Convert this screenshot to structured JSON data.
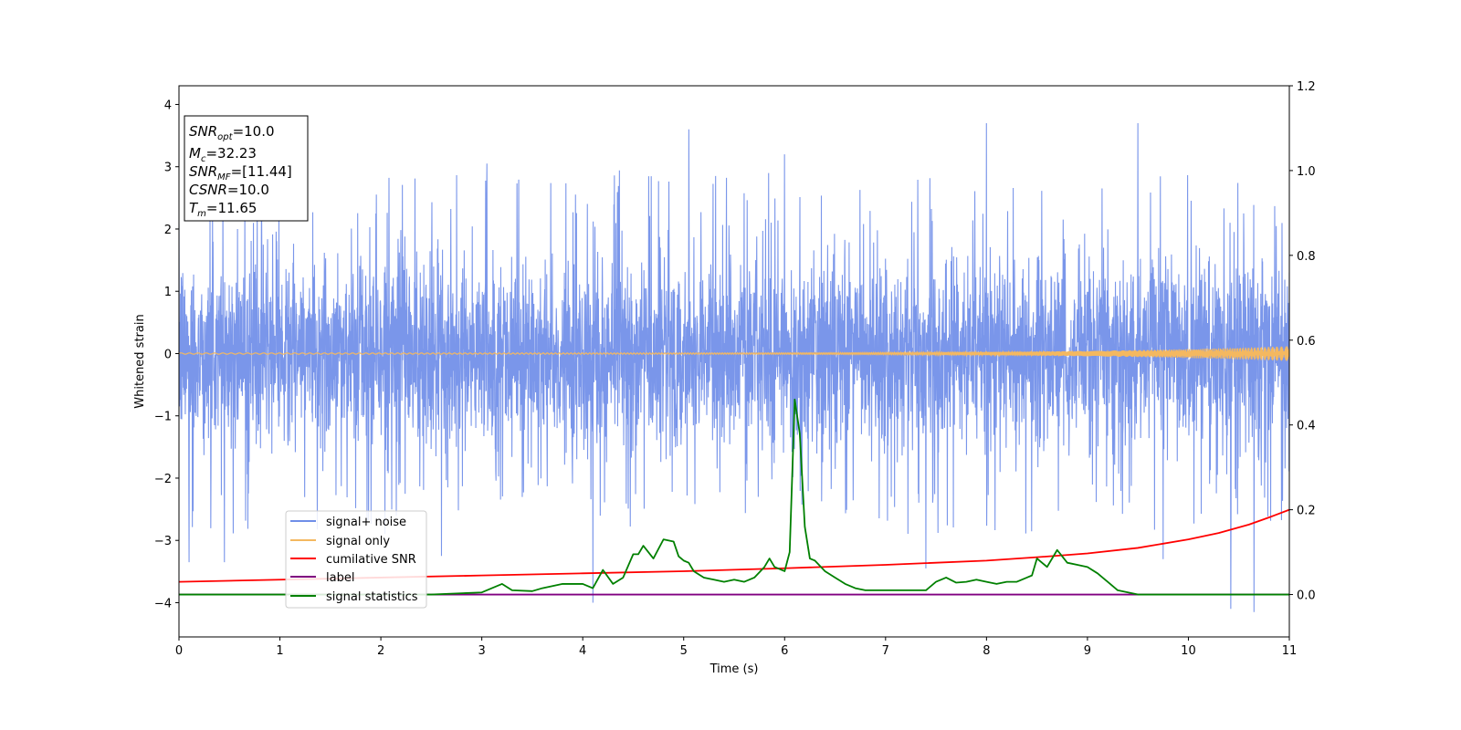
{
  "chart_data": {
    "type": "line",
    "xlabel": "Time (s)",
    "ylabel": "Whitened strain",
    "xlim": [
      0,
      11
    ],
    "ylim_left": [
      -4.55,
      4.3
    ],
    "ylim_right": [
      -0.1,
      1.2
    ],
    "x_ticks": [
      "0",
      "1",
      "2",
      "3",
      "4",
      "5",
      "6",
      "7",
      "8",
      "9",
      "10",
      "11"
    ],
    "y_ticks_left": [
      "4",
      "3",
      "2",
      "1",
      "0",
      "−1",
      "−2",
      "−3",
      "−4"
    ],
    "y_ticks_right": [
      "1.2",
      "1.0",
      "0.8",
      "0.6",
      "0.4",
      "0.2",
      "0.0"
    ],
    "grid": false,
    "legend_location": "lower-left",
    "info_box": {
      "snr_opt": {
        "sym": "SNR",
        "sub": "opt",
        "val": "=10.0"
      },
      "mc": {
        "sym": "M",
        "sub": "c",
        "val": "=32.23"
      },
      "snr_mf": {
        "sym": "SNR",
        "sub": "MF",
        "val": "=[11.44]"
      },
      "csnr": {
        "sym": "CSNR",
        "sub": "",
        "val": "=10.0"
      },
      "tm": {
        "sym": "T",
        "sub": "m",
        "val": "=11.65"
      }
    },
    "series": [
      {
        "name": "signal+ noise",
        "axis": "left",
        "color": "#4169e1",
        "style": "noise",
        "typical_range": [
          -2.0,
          2.0
        ],
        "spike_range": [
          -4.2,
          3.7
        ],
        "spikes": [
          [
            0.1,
            -3.35
          ],
          [
            0.45,
            -3.35
          ],
          [
            2.6,
            -3.25
          ],
          [
            4.1,
            -4.0
          ],
          [
            5.05,
            3.6
          ],
          [
            8.0,
            3.7
          ],
          [
            9.5,
            3.7
          ],
          [
            10.42,
            -4.1
          ],
          [
            10.65,
            -4.15
          ],
          [
            9.75,
            -3.3
          ],
          [
            7.4,
            -3.45
          ],
          [
            3.05,
            3.05
          ],
          [
            6.0,
            3.2
          ]
        ]
      },
      {
        "name": "signal only",
        "axis": "left",
        "color": "#f4b860",
        "style": "chirp",
        "amplitude_start": 0.01,
        "amplitude_end": 0.12
      },
      {
        "name": "cumilative SNR",
        "axis": "right",
        "color": "#ff0000",
        "x": [
          0,
          1,
          2,
          3,
          4,
          5,
          6,
          7,
          8,
          8.5,
          9,
          9.5,
          10,
          10.3,
          10.6,
          10.8,
          11
        ],
        "y": [
          0.03,
          0.035,
          0.04,
          0.045,
          0.05,
          0.055,
          0.062,
          0.07,
          0.08,
          0.088,
          0.097,
          0.11,
          0.13,
          0.145,
          0.165,
          0.182,
          0.2
        ]
      },
      {
        "name": "label",
        "axis": "right",
        "color": "#800080",
        "x": [
          0,
          11
        ],
        "y": [
          0.0,
          0.0
        ]
      },
      {
        "name": "signal statistics",
        "axis": "right",
        "color": "#008000",
        "x": [
          0,
          0.5,
          1,
          1.5,
          2,
          2.5,
          3,
          3.1,
          3.2,
          3.3,
          3.5,
          3.6,
          3.7,
          3.8,
          3.9,
          4.0,
          4.1,
          4.2,
          4.3,
          4.4,
          4.5,
          4.55,
          4.6,
          4.7,
          4.8,
          4.9,
          4.95,
          5.0,
          5.05,
          5.1,
          5.2,
          5.3,
          5.4,
          5.5,
          5.6,
          5.7,
          5.8,
          5.85,
          5.9,
          6.0,
          6.05,
          6.1,
          6.15,
          6.2,
          6.25,
          6.3,
          6.4,
          6.5,
          6.6,
          6.7,
          6.8,
          6.9,
          7.0,
          7.2,
          7.4,
          7.5,
          7.6,
          7.7,
          7.8,
          7.9,
          8.0,
          8.1,
          8.2,
          8.3,
          8.4,
          8.45,
          8.5,
          8.6,
          8.7,
          8.75,
          8.8,
          8.9,
          9.0,
          9.1,
          9.2,
          9.3,
          9.5,
          9.7,
          9.8,
          10,
          11
        ],
        "y": [
          0.0,
          0.0,
          0.0,
          0.0,
          0.0,
          0.0,
          0.005,
          0.015,
          0.025,
          0.01,
          0.008,
          0.015,
          0.02,
          0.025,
          0.025,
          0.025,
          0.015,
          0.058,
          0.025,
          0.04,
          0.095,
          0.095,
          0.115,
          0.085,
          0.13,
          0.125,
          0.09,
          0.08,
          0.075,
          0.055,
          0.04,
          0.035,
          0.03,
          0.035,
          0.03,
          0.04,
          0.065,
          0.085,
          0.065,
          0.055,
          0.1,
          0.46,
          0.38,
          0.16,
          0.085,
          0.08,
          0.055,
          0.04,
          0.025,
          0.015,
          0.01,
          0.01,
          0.01,
          0.01,
          0.01,
          0.03,
          0.04,
          0.028,
          0.03,
          0.035,
          0.03,
          0.025,
          0.03,
          0.03,
          0.04,
          0.045,
          0.085,
          0.065,
          0.105,
          0.09,
          0.075,
          0.07,
          0.065,
          0.05,
          0.03,
          0.01,
          0.0,
          0.0,
          0.0,
          0.0,
          0.0
        ]
      }
    ]
  }
}
